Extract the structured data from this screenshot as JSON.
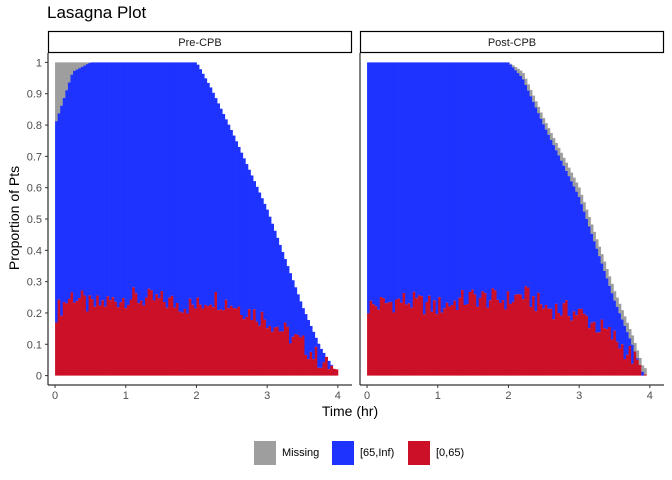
{
  "chart_data": {
    "type": "area",
    "title": "Lasagna Plot",
    "xlabel": "Time (hr)",
    "ylabel": "Proportion of Pts",
    "xlim": [
      -0.1,
      4.2
    ],
    "ylim": [
      -0.03,
      1.03
    ],
    "x_ticks": [
      "0",
      "1",
      "2",
      "3",
      "4"
    ],
    "y_ticks": [
      "0",
      "0.1",
      "0.2",
      "0.3",
      "0.4",
      "0.5",
      "0.6",
      "0.7",
      "0.8",
      "0.9",
      "1"
    ],
    "grid": false,
    "legend_position": "bottom",
    "colors": {
      "Missing": "#9e9e9e",
      "[65,Inf)": "#1f33ff",
      "[0,65)": "#cb1028"
    },
    "legend": [
      {
        "name": "Missing",
        "color": "#9e9e9e"
      },
      {
        "name": "[65,Inf)",
        "color": "#1f33ff"
      },
      {
        "name": "[0,65)",
        "color": "#cb1028"
      }
    ],
    "panels": [
      {
        "label": "Pre-CPB",
        "time": [
          0,
          0.25,
          0.5,
          1.0,
          1.5,
          2.0,
          2.2,
          2.5,
          3.0,
          3.5,
          3.75,
          3.95,
          4.0
        ],
        "total": [
          1.0,
          1.0,
          1.0,
          1.0,
          1.0,
          1.0,
          0.92,
          0.78,
          0.53,
          0.22,
          0.09,
          0.02,
          0.02
        ],
        "blue_top": [
          0.8,
          0.97,
          1.0,
          1.0,
          1.0,
          1.0,
          0.92,
          0.78,
          0.53,
          0.22,
          0.09,
          0.02,
          0.02
        ],
        "red": [
          0.2,
          0.26,
          0.22,
          0.25,
          0.24,
          0.22,
          0.25,
          0.23,
          0.18,
          0.1,
          0.05,
          0.02,
          0.01
        ]
      },
      {
        "label": "Post-CPB",
        "time": [
          0,
          0.5,
          1.0,
          1.5,
          2.0,
          2.2,
          2.5,
          3.0,
          3.5,
          3.75,
          3.9,
          3.95
        ],
        "total": [
          1.0,
          1.0,
          1.0,
          1.0,
          1.0,
          0.97,
          0.82,
          0.6,
          0.27,
          0.13,
          0.03,
          0.02
        ],
        "blue_top": [
          1.0,
          1.0,
          1.0,
          1.0,
          1.0,
          0.95,
          0.8,
          0.57,
          0.24,
          0.1,
          0.01,
          0.0
        ],
        "red": [
          0.22,
          0.24,
          0.22,
          0.25,
          0.24,
          0.26,
          0.22,
          0.2,
          0.12,
          0.06,
          0.02,
          0.0
        ]
      }
    ]
  }
}
